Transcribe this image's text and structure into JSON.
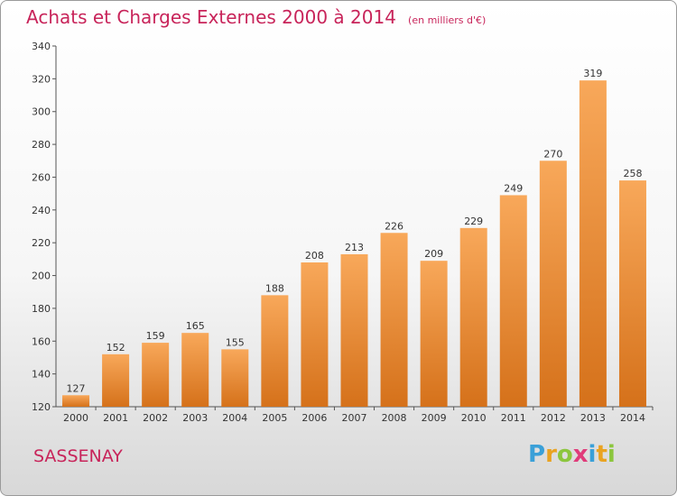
{
  "header": {
    "title": "Achats et Charges Externes 2000 à 2014",
    "subtitle": "(en milliers d'€)"
  },
  "footer": {
    "commune": "SASSENAY",
    "logo_letters": [
      "P",
      "r",
      "o",
      "x",
      "i",
      "t",
      "i"
    ],
    "logo_colors": [
      "#3aa0d8",
      "#e9a321",
      "#8cc63e",
      "#e03c7a",
      "#3aa0d8",
      "#e9a321",
      "#8cc63e"
    ]
  },
  "colors": {
    "bar_top": "#f8a85a",
    "bar_bottom": "#d5711a",
    "accent": "#c8245a"
  },
  "chart_data": {
    "type": "bar",
    "title": "Achats et Charges Externes 2000 à 2014",
    "subtitle": "(en milliers d'€)",
    "categories": [
      "2000",
      "2001",
      "2002",
      "2003",
      "2004",
      "2005",
      "2006",
      "2007",
      "2008",
      "2009",
      "2010",
      "2011",
      "2012",
      "2013",
      "2014"
    ],
    "values": [
      127,
      152,
      159,
      165,
      155,
      188,
      208,
      213,
      226,
      209,
      229,
      249,
      270,
      319,
      258
    ],
    "yticks": [
      120,
      140,
      160,
      180,
      200,
      220,
      240,
      260,
      280,
      300,
      320,
      340
    ],
    "ylim": [
      120,
      340
    ],
    "grid": false,
    "data_labels": true
  }
}
